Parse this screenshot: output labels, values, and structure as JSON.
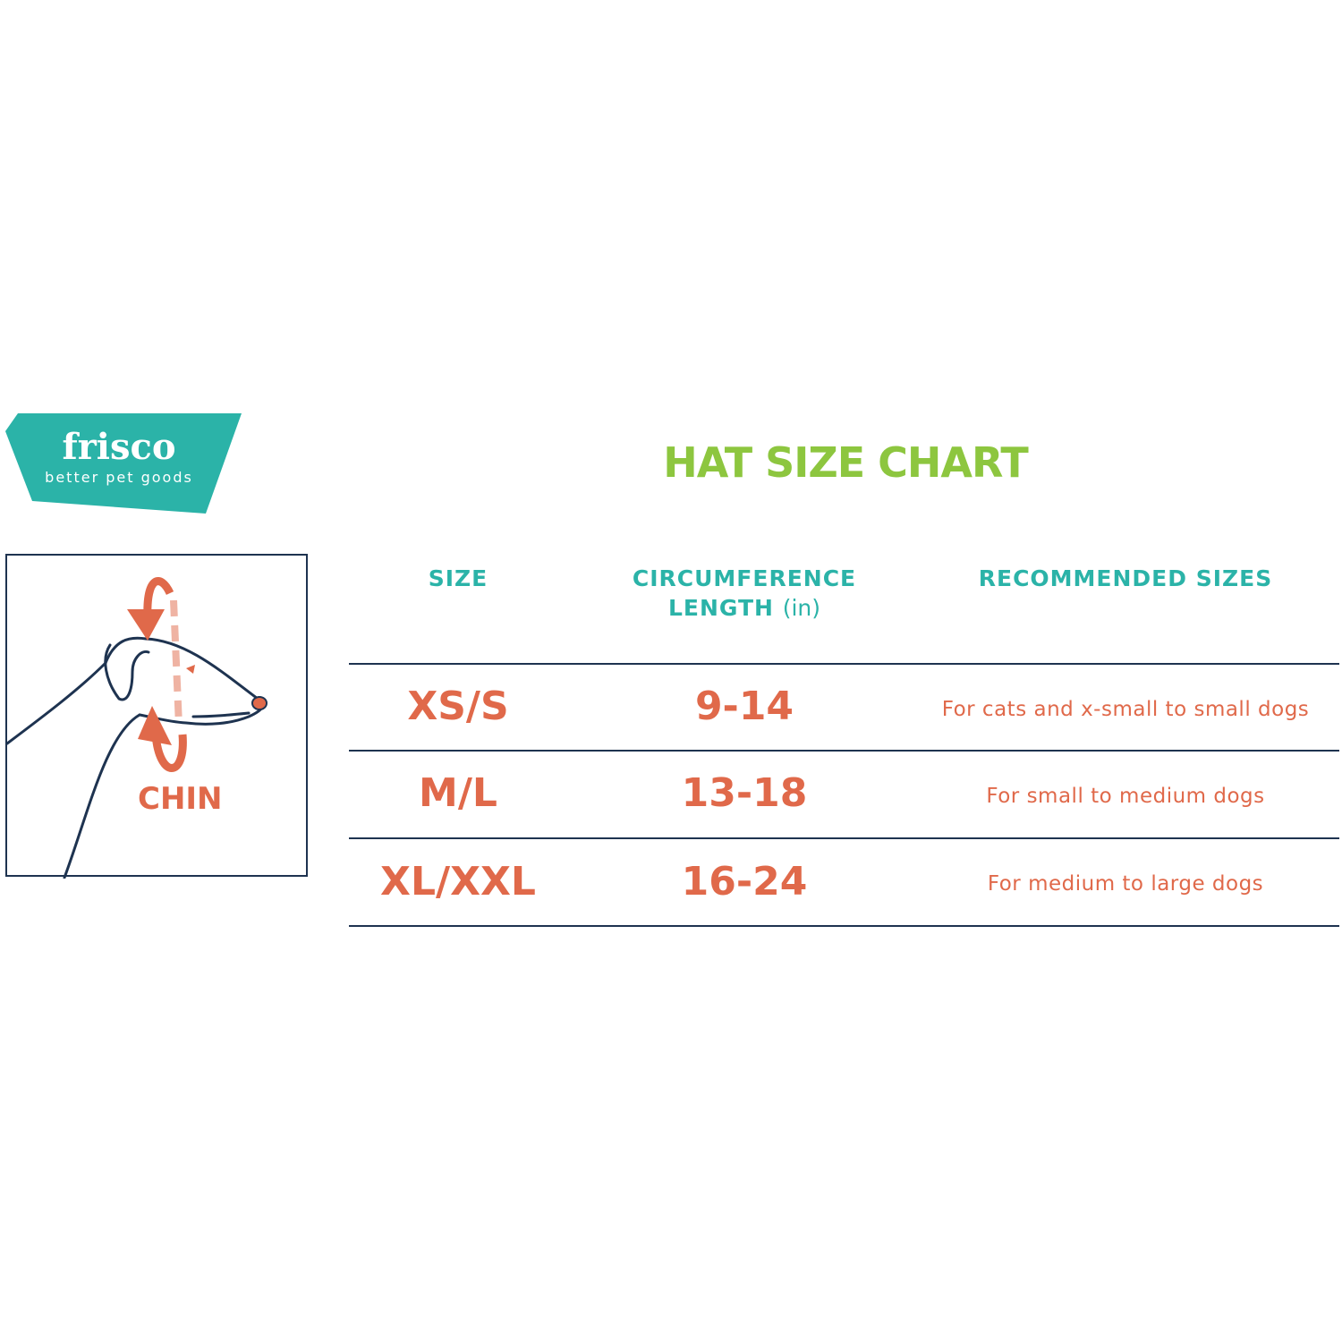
{
  "logo": {
    "name": "frisco",
    "tagline": "better pet goods"
  },
  "illustration": {
    "label": "CHIN"
  },
  "title": "HAT SIZE CHART",
  "table": {
    "headers": {
      "size": "SIZE",
      "circumference_line1": "CIRCUMFERENCE",
      "circumference_line2": "LENGTH",
      "circumference_unit": "(in)",
      "recommended": "RECOMMENDED SIZES"
    },
    "rows": [
      {
        "size": "XS/S",
        "range": "9-14",
        "recommended": "For cats and x-small to small dogs"
      },
      {
        "size": "M/L",
        "range": "13-18",
        "recommended": "For small to medium dogs"
      },
      {
        "size": "XL/XXL",
        "range": "16-24",
        "recommended": "For medium to large dogs"
      }
    ]
  },
  "colors": {
    "teal": "#2bb3a8",
    "green": "#8dc63f",
    "orange": "#e0694a",
    "navy": "#1e3350"
  }
}
